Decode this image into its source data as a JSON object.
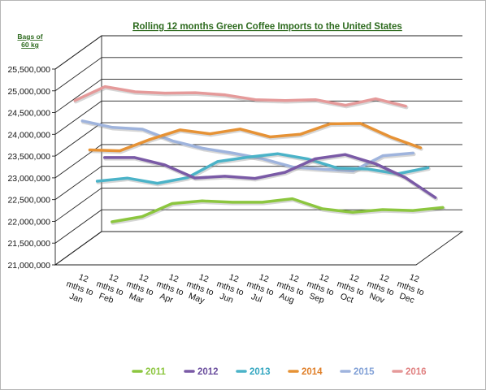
{
  "chart_data": {
    "type": "line",
    "title": "Rolling 12 months Green Coffee Imports to the United States",
    "ylabel_line1": "Bags of",
    "ylabel_line2": "60 kg",
    "yticks": [
      "21,000,000",
      "21,500,000",
      "22,000,000",
      "22,500,000",
      "23,000,000",
      "23,500,000",
      "24,000,000",
      "24,500,000",
      "25,000,000",
      "25,500,000"
    ],
    "ylim": [
      21000000,
      25500000
    ],
    "categories": [
      [
        "12",
        "mths to",
        "Jan"
      ],
      [
        "12",
        "mths to",
        "Feb"
      ],
      [
        "12",
        "mths to",
        "Mar"
      ],
      [
        "12",
        "mths to",
        "Apr"
      ],
      [
        "12",
        "mths to",
        "May"
      ],
      [
        "12",
        "mths to",
        "Jun"
      ],
      [
        "12",
        "mths to",
        "Jul"
      ],
      [
        "12",
        "mths to",
        "Aug"
      ],
      [
        "12",
        "mths to",
        "Sep"
      ],
      [
        "12",
        "mths to",
        "Oct"
      ],
      [
        "12",
        "mths to",
        "Nov"
      ],
      [
        "12",
        "mths to",
        "Dec"
      ]
    ],
    "legend_position": "bottom",
    "series": [
      {
        "name": "2011",
        "color": "#8cc63f",
        "label_color": "#8cc63f",
        "values": [
          21300000,
          21420000,
          21720000,
          21780000,
          21750000,
          21750000,
          21830000,
          21600000,
          21520000,
          21580000,
          21560000,
          21630000
        ]
      },
      {
        "name": "2012",
        "color": "#7a5aa6",
        "label_color": "#6b4f9e",
        "values": [
          22900000,
          22900000,
          22730000,
          22430000,
          22470000,
          22420000,
          22560000,
          22870000,
          22970000,
          22760000,
          22440000,
          21980000
        ]
      },
      {
        "name": "2013",
        "color": "#4bb3c8",
        "label_color": "#33a6c0",
        "values": [
          22480000,
          22550000,
          22430000,
          22560000,
          22930000,
          23030000,
          23110000,
          22990000,
          22780000,
          22760000,
          22650000,
          22790000
        ]
      },
      {
        "name": "2014",
        "color": "#e69235",
        "label_color": "#e0802a",
        "values": [
          23320000,
          23300000,
          23560000,
          23780000,
          23690000,
          23800000,
          23620000,
          23680000,
          23920000,
          23930000,
          23620000,
          23370000
        ]
      },
      {
        "name": "2015",
        "color": "#9fb4dd",
        "label_color": "#7f9fd6",
        "values": [
          24110000,
          23960000,
          23920000,
          23650000,
          23480000,
          23370000,
          23240000,
          23050000,
          23000000,
          22960000,
          23310000,
          23370000
        ]
      },
      {
        "name": "2016",
        "color": "#e59a9a",
        "label_color": "#e08080",
        "values": [
          24700000,
          25020000,
          24900000,
          24870000,
          24880000,
          24830000,
          24720000,
          24700000,
          24720000,
          24590000,
          24740000,
          24570000
        ]
      }
    ]
  }
}
